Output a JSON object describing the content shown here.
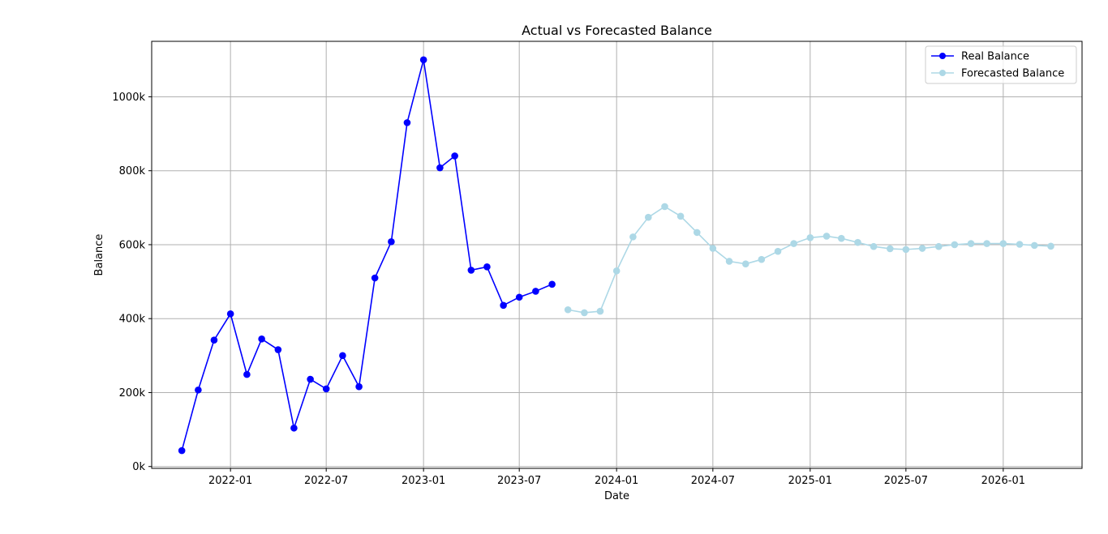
{
  "chart_data": {
    "type": "line",
    "title": "Actual vs Forecasted Balance",
    "xlabel": "Date",
    "ylabel": "Balance",
    "x_ticks": [
      "2022-01",
      "2022-07",
      "2023-01",
      "2023-07",
      "2024-01",
      "2024-07",
      "2025-01",
      "2025-07",
      "2026-01"
    ],
    "y_ticks": [
      0,
      200000,
      400000,
      600000,
      800000,
      1000000
    ],
    "y_tick_labels": [
      "0k",
      "200k",
      "400k",
      "600k",
      "800k",
      "1000k"
    ],
    "xlim": [
      "2021-08-05",
      "2026-05-30"
    ],
    "ylim": [
      -5000,
      1150000
    ],
    "grid": true,
    "legend_position": "top-right",
    "series": [
      {
        "name": "Real Balance",
        "color": "#0000ff",
        "x": [
          "2021-10-01",
          "2021-11-01",
          "2021-12-01",
          "2022-01-01",
          "2022-02-01",
          "2022-03-01",
          "2022-04-01",
          "2022-05-01",
          "2022-06-01",
          "2022-07-01",
          "2022-08-01",
          "2022-09-01",
          "2022-10-01",
          "2022-11-01",
          "2022-12-01",
          "2023-01-01",
          "2023-02-01",
          "2023-03-01",
          "2023-04-01",
          "2023-05-01",
          "2023-06-01",
          "2023-07-01",
          "2023-08-01",
          "2023-09-01"
        ],
        "values": [
          43000,
          207000,
          342000,
          413000,
          249000,
          345000,
          316000,
          104000,
          236000,
          210000,
          300000,
          216000,
          510000,
          608000,
          930000,
          1100000,
          808000,
          840000,
          531000,
          540000,
          436000,
          458000,
          474000,
          493000
        ]
      },
      {
        "name": "Forecasted Balance",
        "color": "#add8e6",
        "x": [
          "2023-10-01",
          "2023-11-01",
          "2023-12-01",
          "2024-01-01",
          "2024-02-01",
          "2024-03-01",
          "2024-04-01",
          "2024-05-01",
          "2024-06-01",
          "2024-07-01",
          "2024-08-01",
          "2024-09-01",
          "2024-10-01",
          "2024-11-01",
          "2024-12-01",
          "2025-01-01",
          "2025-02-01",
          "2025-03-01",
          "2025-04-01",
          "2025-05-01",
          "2025-06-01",
          "2025-07-01",
          "2025-08-01",
          "2025-09-01",
          "2025-10-01",
          "2025-11-01",
          "2025-12-01",
          "2026-01-01",
          "2026-02-01",
          "2026-03-01",
          "2026-04-01"
        ],
        "values": [
          424000,
          416000,
          420000,
          529000,
          621000,
          674000,
          703000,
          677000,
          633000,
          590000,
          555000,
          548000,
          560000,
          582000,
          603000,
          619000,
          623000,
          617000,
          606000,
          595000,
          589000,
          587000,
          590000,
          595000,
          600000,
          603000,
          603000,
          603000,
          601000,
          598000,
          596000
        ]
      }
    ]
  }
}
